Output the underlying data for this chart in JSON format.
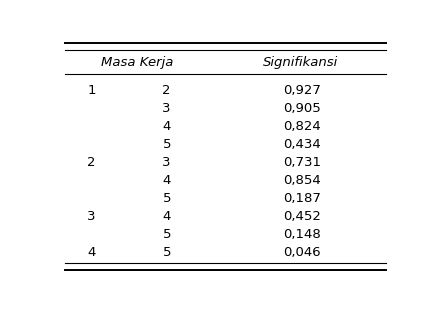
{
  "col1_header": "Masa Kerja",
  "col2_header": "Signifikansi",
  "rows": [
    {
      "c1": "1",
      "c2": "2",
      "sig": "0,927"
    },
    {
      "c1": "",
      "c2": "3",
      "sig": "0,905"
    },
    {
      "c1": "",
      "c2": "4",
      "sig": "0,824"
    },
    {
      "c1": "",
      "c2": "5",
      "sig": "0,434"
    },
    {
      "c1": "2",
      "c2": "3",
      "sig": "0,731"
    },
    {
      "c1": "",
      "c2": "4",
      "sig": "0,854"
    },
    {
      "c1": "",
      "c2": "5",
      "sig": "0,187"
    },
    {
      "c1": "3",
      "c2": "4",
      "sig": "0,452"
    },
    {
      "c1": "",
      "c2": "5",
      "sig": "0,148"
    },
    {
      "c1": "4",
      "c2": "5",
      "sig": "0,046"
    }
  ],
  "bg_color": "#ffffff",
  "text_color": "#000000",
  "font_size": 9.5,
  "header_font_size": 9.5,
  "line_color": "#000000",
  "figsize": [
    4.4,
    3.1
  ],
  "dpi": 100
}
